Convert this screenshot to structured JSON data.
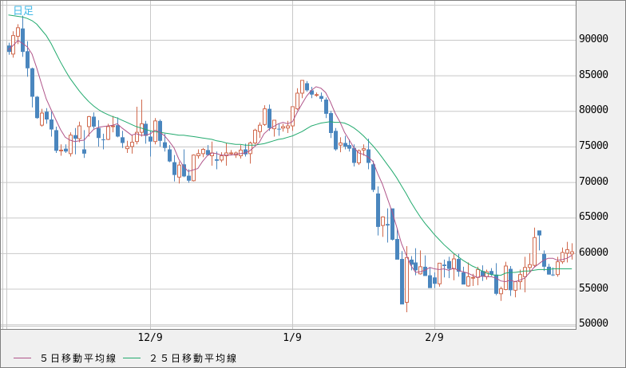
{
  "header": {
    "period_label": "日足"
  },
  "legend": [
    {
      "label": "５日移動平均線",
      "color": "#b0558a"
    },
    {
      "label": "２５日移動平均線",
      "color": "#22aa6e"
    }
  ],
  "colors": {
    "up": "#d0694d",
    "down": "#4a86be",
    "grid": "#c8c8c8",
    "plot_bg": "#ffffff",
    "panel_bg": "#f0f0f0",
    "period_label": "#3fb7e6"
  },
  "chart_data": {
    "type": "candlestick",
    "title": "",
    "period": "日足",
    "xlabel": "",
    "ylabel": "",
    "ylim": [
      49500,
      95500
    ],
    "yticks": [
      90000,
      85000,
      80000,
      75000,
      70000,
      65000,
      60000,
      55000,
      50000
    ],
    "xticks": [
      {
        "label": "12/9",
        "index": 30
      },
      {
        "label": "1/9",
        "index": 60
      },
      {
        "label": "2/9",
        "index": 90
      }
    ],
    "grid": true,
    "legend_position": "bottom-left",
    "series_legend": [
      "５日移動平均線",
      "２５日移動平均線"
    ],
    "candles": [
      [
        89200,
        89600,
        87900,
        88300
      ],
      [
        88000,
        91200,
        87500,
        90600
      ],
      [
        90500,
        92200,
        89400,
        91700
      ],
      [
        91600,
        93400,
        87600,
        88300
      ],
      [
        88400,
        89800,
        84800,
        86000
      ],
      [
        86000,
        86100,
        80500,
        82000
      ],
      [
        82000,
        82100,
        78900,
        79000
      ],
      [
        78000,
        80300,
        77800,
        79700
      ],
      [
        79900,
        80400,
        78200,
        78800
      ],
      [
        78800,
        79900,
        76400,
        77400
      ],
      [
        77300,
        77800,
        74100,
        74400
      ],
      [
        74400,
        75300,
        73700,
        74500
      ],
      [
        74700,
        75300,
        74100,
        74300
      ],
      [
        74000,
        77000,
        73600,
        76600
      ],
      [
        76600,
        77600,
        73900,
        76100
      ],
      [
        76100,
        78500,
        75600,
        77900
      ],
      [
        74600,
        77300,
        73400,
        74000
      ],
      [
        77800,
        79300,
        76400,
        79200
      ],
      [
        79200,
        79800,
        77500,
        77800
      ],
      [
        77600,
        78700,
        75000,
        76200
      ],
      [
        76000,
        76800,
        74600,
        75900
      ],
      [
        76000,
        78200,
        75900,
        77800
      ],
      [
        77900,
        79300,
        77000,
        77900
      ],
      [
        78000,
        79100,
        76300,
        76400
      ],
      [
        76300,
        77200,
        74800,
        75500
      ],
      [
        74700,
        75800,
        74100,
        75000
      ],
      [
        75000,
        76600,
        74000,
        75600
      ],
      [
        75700,
        80600,
        75300,
        77000
      ],
      [
        77000,
        81600,
        76400,
        78200
      ],
      [
        78200,
        78600,
        75400,
        76500
      ],
      [
        76400,
        77200,
        73600,
        75700
      ],
      [
        75700,
        79000,
        75300,
        78600
      ],
      [
        78600,
        78800,
        75000,
        75800
      ],
      [
        75600,
        76800,
        74300,
        74800
      ],
      [
        74600,
        75200,
        72800,
        72900
      ],
      [
        72800,
        73800,
        70100,
        71000
      ],
      [
        70700,
        72900,
        69800,
        72400
      ],
      [
        72500,
        74600,
        70700,
        70800
      ],
      [
        70900,
        71800,
        69900,
        70200
      ],
      [
        70200,
        73900,
        70100,
        73800
      ],
      [
        73700,
        74600,
        73300,
        74000
      ],
      [
        74000,
        74800,
        73500,
        74600
      ],
      [
        74500,
        75200,
        73700,
        73800
      ],
      [
        73700,
        75700,
        72300,
        74100
      ],
      [
        73200,
        74300,
        71800,
        73000
      ],
      [
        73100,
        74200,
        72800,
        73700
      ],
      [
        73700,
        75500,
        72300,
        74100
      ],
      [
        74000,
        74500,
        73800,
        74100
      ],
      [
        73800,
        74300,
        73400,
        74100
      ],
      [
        73700,
        75200,
        73300,
        74500
      ],
      [
        74600,
        75400,
        73600,
        73900
      ],
      [
        74000,
        75700,
        72600,
        75500
      ],
      [
        75500,
        77500,
        75300,
        77300
      ],
      [
        77100,
        78400,
        76200,
        78000
      ],
      [
        78100,
        80800,
        77900,
        80300
      ],
      [
        80300,
        80900,
        77200,
        77600
      ],
      [
        77500,
        78600,
        76400,
        78700
      ],
      [
        77500,
        78200,
        76500,
        77400
      ],
      [
        77600,
        78200,
        77100,
        77800
      ],
      [
        77600,
        78600,
        76900,
        77900
      ],
      [
        77900,
        79200,
        77200,
        80600
      ],
      [
        80300,
        83200,
        80100,
        82500
      ],
      [
        82500,
        84000,
        81800,
        84300
      ],
      [
        83900,
        84200,
        82700,
        82900
      ],
      [
        82900,
        83400,
        81800,
        82300
      ],
      [
        82200,
        82600,
        82000,
        82300
      ],
      [
        82100,
        82600,
        81300,
        81700
      ],
      [
        81600,
        81900,
        79000,
        79600
      ],
      [
        79700,
        80000,
        76200,
        76900
      ],
      [
        77200,
        77600,
        74400,
        74600
      ],
      [
        75200,
        76300,
        74200,
        75500
      ],
      [
        75500,
        76500,
        74600,
        75000
      ],
      [
        75200,
        76000,
        74300,
        74700
      ],
      [
        74800,
        75300,
        72200,
        72700
      ],
      [
        72700,
        74600,
        72400,
        74400
      ],
      [
        74500,
        75300,
        73700,
        74700
      ],
      [
        74600,
        76100,
        71800,
        72700
      ],
      [
        72500,
        73000,
        68600,
        68900
      ],
      [
        68400,
        69400,
        62500,
        63700
      ],
      [
        63900,
        65200,
        62300,
        65100
      ],
      [
        64100,
        66300,
        61500,
        63900
      ],
      [
        66300,
        65800,
        61800,
        61900
      ],
      [
        62000,
        63500,
        61500,
        59100
      ],
      [
        59200,
        60300,
        53600,
        52800
      ],
      [
        53100,
        61000,
        51700,
        59400
      ],
      [
        59100,
        59600,
        57600,
        58400
      ],
      [
        58700,
        60700,
        56900,
        57600
      ],
      [
        57100,
        60400,
        57000,
        58100
      ],
      [
        58100,
        59700,
        56900,
        56800
      ],
      [
        56900,
        58000,
        55600,
        55100
      ],
      [
        56600,
        57300,
        55100,
        55700
      ],
      [
        55700,
        58500,
        55300,
        58600
      ],
      [
        58400,
        59100,
        56600,
        58200
      ],
      [
        58900,
        59500,
        56500,
        57800
      ],
      [
        57800,
        60000,
        56200,
        59200
      ],
      [
        59200,
        59900,
        56700,
        57400
      ],
      [
        57300,
        58100,
        55800,
        55600
      ],
      [
        55400,
        58700,
        55300,
        56700
      ],
      [
        56600,
        57100,
        55400,
        56600
      ],
      [
        56600,
        58100,
        55500,
        57700
      ],
      [
        57500,
        58300,
        56100,
        56700
      ],
      [
        56700,
        57700,
        56300,
        57400
      ],
      [
        57500,
        57900,
        56800,
        57000
      ],
      [
        57000,
        58600,
        54100,
        54300
      ],
      [
        54300,
        55300,
        53300,
        55000
      ],
      [
        54900,
        58800,
        54800,
        58200
      ],
      [
        57800,
        58200,
        54000,
        54800
      ],
      [
        54800,
        56100,
        53800,
        56000
      ],
      [
        56000,
        57700,
        54900,
        57000
      ],
      [
        56700,
        59500,
        54500,
        58000
      ],
      [
        58000,
        60000,
        57200,
        58400
      ],
      [
        58300,
        63600,
        58000,
        62200
      ],
      [
        63200,
        62800,
        60400,
        62500
      ],
      [
        59900,
        60400,
        57500,
        58100
      ],
      [
        58100,
        58500,
        57000,
        57000
      ],
      [
        57000,
        58000,
        56800,
        56900
      ],
      [
        57000,
        59500,
        56700,
        58800
      ],
      [
        58800,
        60800,
        58500,
        60100
      ],
      [
        60000,
        61600,
        58700,
        60500
      ],
      [
        59900,
        61400,
        59100,
        60200
      ]
    ],
    "ma5": [
      88600,
      89200,
      89900,
      89500,
      89000,
      88000,
      86000,
      83800,
      81700,
      80200,
      78800,
      77400,
      76300,
      75900,
      75700,
      75800,
      75900,
      76700,
      77400,
      77700,
      77800,
      77900,
      78000,
      78200,
      77600,
      77100,
      76600,
      76800,
      76600,
      76600,
      76800,
      77300,
      77000,
      76500,
      75700,
      74800,
      73200,
      72200,
      71500,
      71700,
      71900,
      72900,
      73700,
      74100,
      74000,
      73800,
      73800,
      73800,
      73900,
      74000,
      74100,
      74400,
      75000,
      75600,
      76800,
      77400,
      77800,
      78200,
      78400,
      78200,
      78500,
      79800,
      81000,
      82100,
      82900,
      83400,
      83200,
      82600,
      81300,
      79700,
      78500,
      77000,
      75900,
      74800,
      74100,
      73900,
      73500,
      72900,
      71200,
      69700,
      67800,
      65900,
      63700,
      61400,
      59800,
      58300,
      57300,
      57400,
      57600,
      58000,
      57800,
      57700,
      57800,
      57600,
      57900,
      57600,
      57400,
      57200,
      56900,
      56600,
      56800,
      56700,
      56700,
      56500,
      56100,
      56000,
      56200,
      56000,
      56200,
      56500,
      57200,
      58000,
      58500,
      59000,
      59300,
      59300,
      59000,
      59100,
      59300,
      59700
    ],
    "ma25": [
      93500,
      93400,
      93300,
      93200,
      93000,
      92700,
      92200,
      91400,
      90600,
      89500,
      88200,
      86900,
      85700,
      84600,
      83700,
      82800,
      82000,
      81300,
      80700,
      80200,
      79800,
      79500,
      79200,
      79000,
      78700,
      78400,
      78100,
      77800,
      77600,
      77400,
      77200,
      77100,
      77000,
      76900,
      76800,
      76700,
      76600,
      76600,
      76500,
      76400,
      76300,
      76200,
      76100,
      76000,
      75800,
      75700,
      75500,
      75400,
      75300,
      75300,
      75200,
      75200,
      75200,
      75300,
      75400,
      75600,
      75800,
      76000,
      76100,
      76300,
      76500,
      76800,
      77100,
      77500,
      77900,
      78100,
      78300,
      78400,
      78500,
      78400,
      78400,
      78300,
      78000,
      77600,
      77100,
      76500,
      75800,
      75100,
      74300,
      73400,
      72500,
      71600,
      70600,
      69500,
      68400,
      67200,
      66100,
      65100,
      64200,
      63400,
      62600,
      61900,
      61200,
      60600,
      60000,
      59500,
      59000,
      58600,
      58200,
      57900,
      57500,
      57200,
      57000,
      56900,
      56900,
      57200,
      57300,
      57300,
      57400,
      57500,
      57500,
      57600,
      57700,
      57700,
      57700,
      57800,
      57800,
      57800,
      57800,
      57800
    ]
  }
}
